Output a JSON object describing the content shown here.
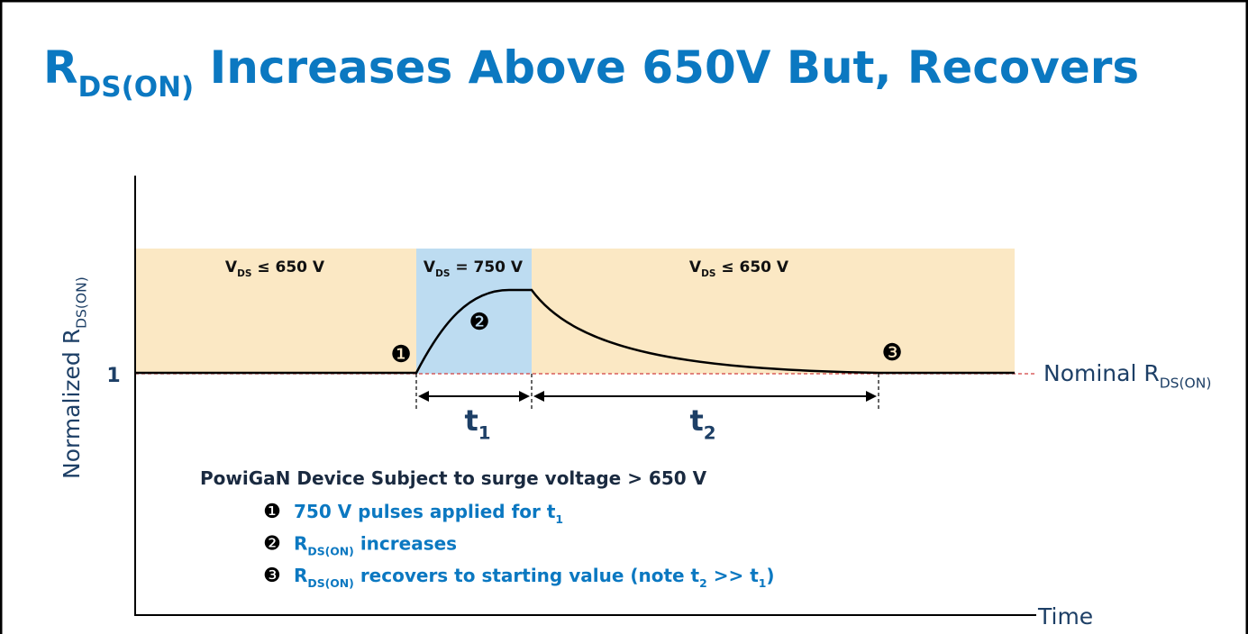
{
  "title": [
    {
      "text": "R"
    },
    {
      "text": "DS(ON)",
      "sub": true
    },
    {
      "text": " Increases Above 650V But, Recovers"
    }
  ],
  "y_axis": {
    "label": [
      {
        "text": "Normalized R"
      },
      {
        "text": "DS(ON)",
        "sub": true
      }
    ],
    "tick": "1"
  },
  "x_axis": {
    "label": [
      {
        "text": "Time"
      }
    ]
  },
  "regions": [
    [
      {
        "text": "V"
      },
      {
        "text": "DS",
        "sub": true
      },
      {
        "text": " ≤ 650 V"
      }
    ],
    [
      {
        "text": "V"
      },
      {
        "text": "DS",
        "sub": true
      },
      {
        "text": " = 750 V"
      }
    ],
    [
      {
        "text": "V"
      },
      {
        "text": "DS",
        "sub": true
      },
      {
        "text": " ≤ 650 V"
      }
    ]
  ],
  "nominal": [
    {
      "text": "Nominal R"
    },
    {
      "text": "DS(ON)",
      "sub": true
    }
  ],
  "markers": [
    "❶",
    "❷",
    "❸"
  ],
  "intervals": [
    [
      {
        "text": "t"
      },
      {
        "text": "1",
        "sub": true
      }
    ],
    [
      {
        "text": "t"
      },
      {
        "text": "2",
        "sub": true
      }
    ]
  ],
  "notes": {
    "heading": [
      {
        "text": "PowiGaN Device Subject to surge voltage > 650 V"
      }
    ],
    "items": [
      {
        "marker": "❶",
        "runs": [
          {
            "text": "750 V pulses applied for t"
          },
          {
            "text": "1",
            "sub": true
          }
        ]
      },
      {
        "marker": "❷",
        "runs": [
          {
            "text": "R"
          },
          {
            "text": "DS(ON)",
            "sub": true
          },
          {
            "text": " increases"
          }
        ]
      },
      {
        "marker": "❸",
        "runs": [
          {
            "text": "R"
          },
          {
            "text": "DS(ON)",
            "sub": true
          },
          {
            "text": " recovers to starting value (note t"
          },
          {
            "text": "2",
            "sub": true
          },
          {
            "text": " >> t"
          },
          {
            "text": "1",
            "sub": true
          },
          {
            "text": ")"
          }
        ]
      }
    ]
  }
}
